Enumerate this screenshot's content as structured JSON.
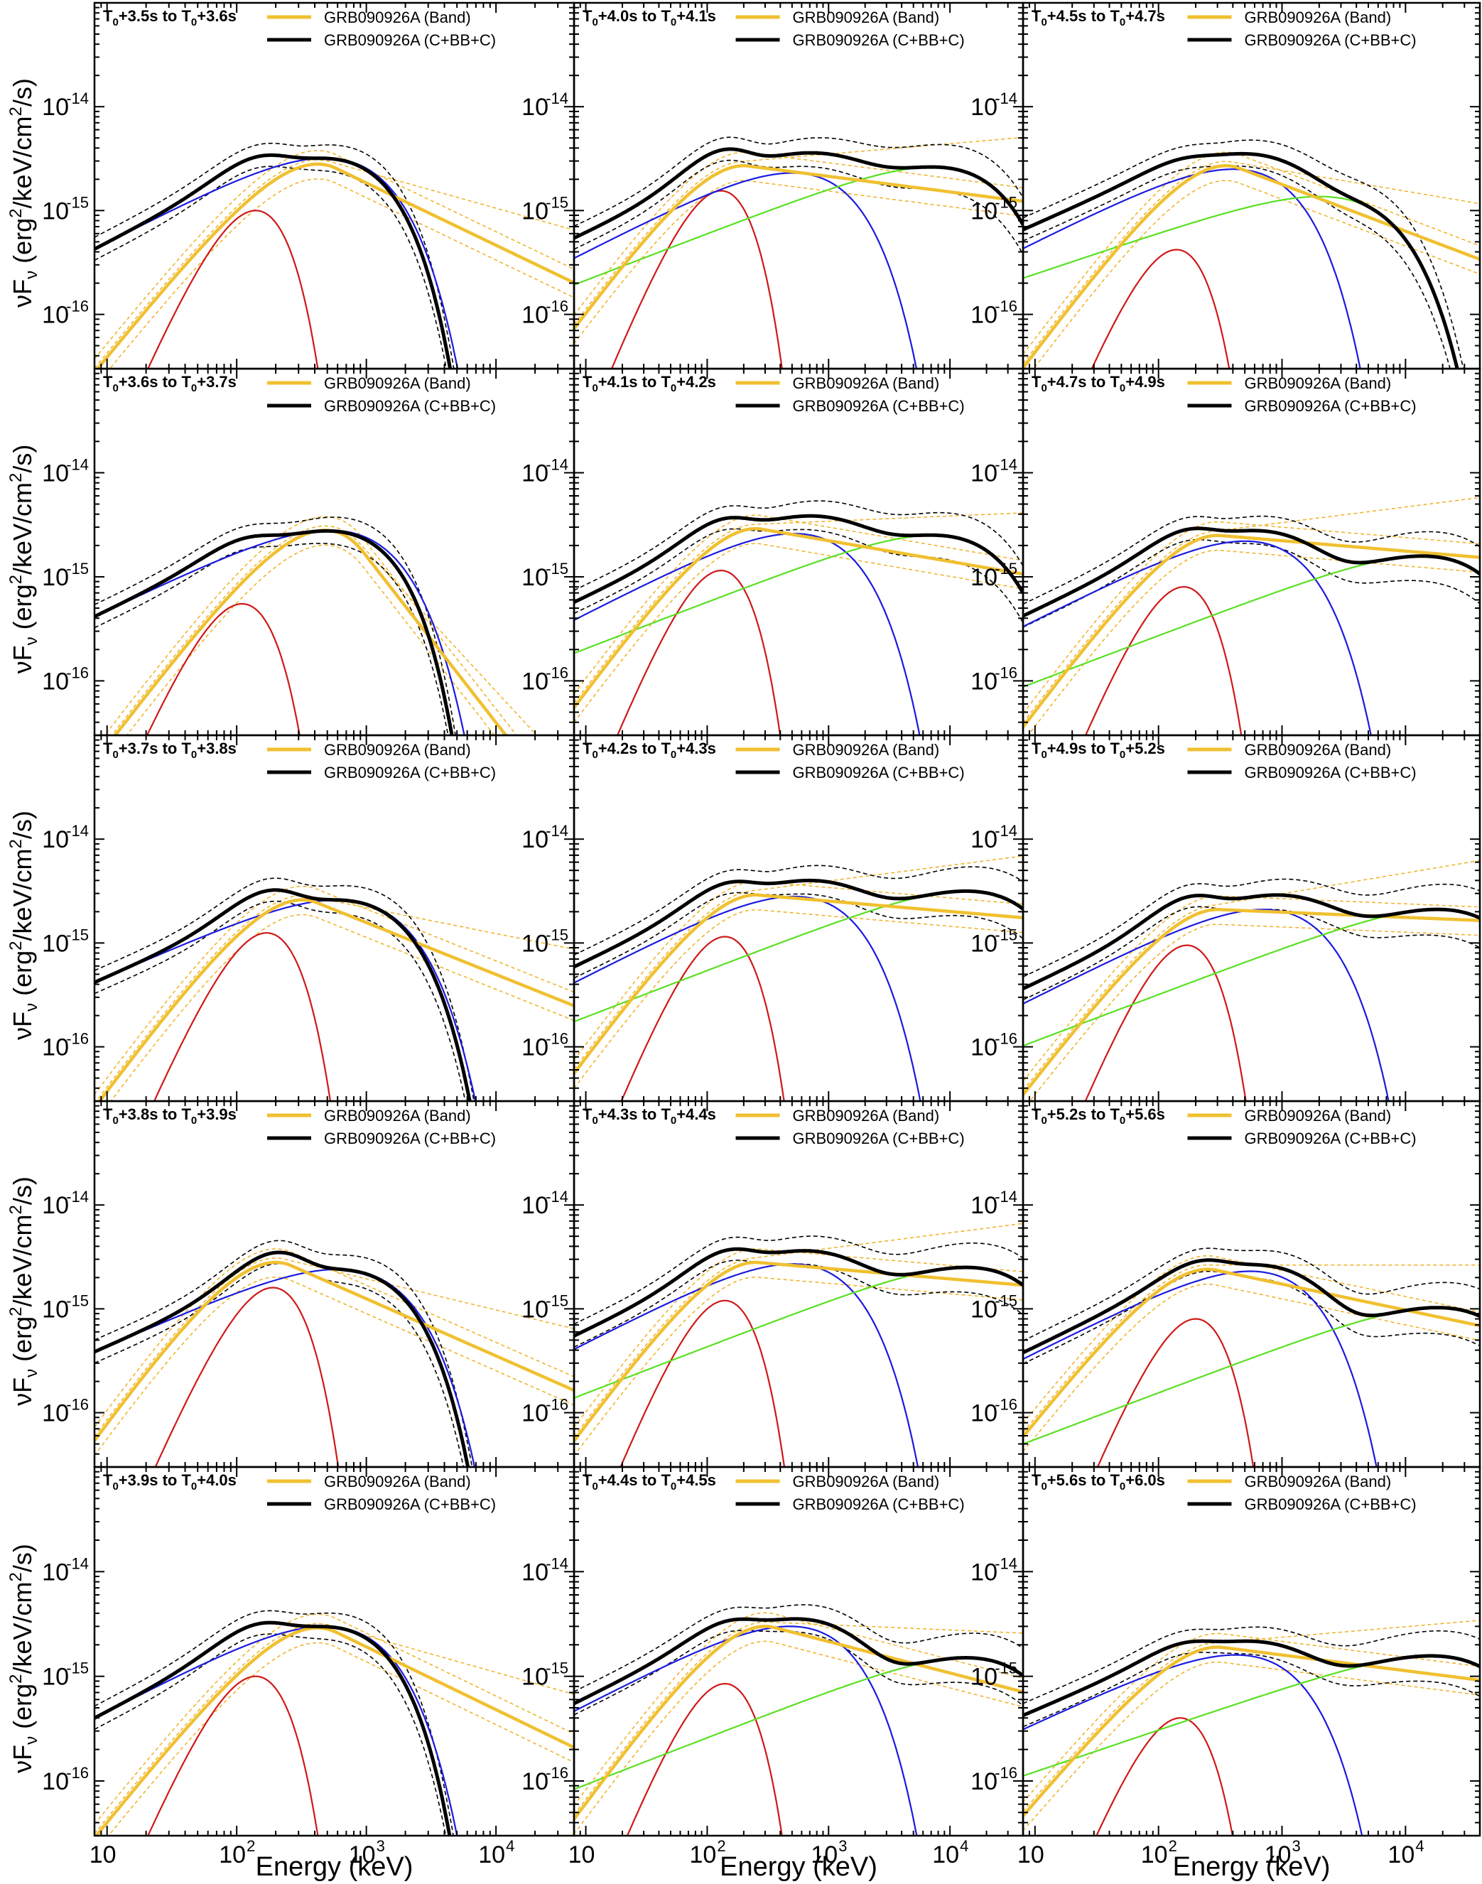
{
  "figure": {
    "ylabel_main": "νF",
    "ylabel_sub": "ν",
    "ylabel_unit": " (erg",
    "ylabel_sup": "2",
    "ylabel_tail": "/keV/cm",
    "ylabel_sup2": "2",
    "ylabel_end": "/s)",
    "xlabel": "Energy (keV)"
  },
  "legend": {
    "band_label": "GRB090926A (Band)",
    "cbbc_label": "GRB090926A (C+BB+C)",
    "band_color": "#f0c030",
    "cbbc_color": "#000000"
  },
  "component_colors": {
    "bb": "#d01818",
    "cutoff": "#1a1ae0",
    "powerlaw": "#58e020",
    "band": "#f0c030",
    "total": "#000000",
    "band_err": "#f0b020",
    "total_err": "#000000"
  },
  "chart_data": [
    {
      "type": "line",
      "panel": "col1-row1",
      "time_label": {
        "t0": "T",
        "sub0": "0",
        "a": "+3.5s to T",
        "sub1": "0",
        "b": "+3.6s"
      },
      "xscale": "log",
      "yscale": "log",
      "xlim": [
        8,
        40000
      ],
      "ylim": [
        3e-17,
        1e-13
      ],
      "band": {
        "A": 2.8e-15,
        "Ep": 420,
        "alpha": -0.45,
        "beta": -2.6
      },
      "bb": {
        "peak": 1e-15,
        "Ep": 140
      },
      "cutoff": {
        "A": 3.2e-15,
        "Ep": 480,
        "index": 0.65
      },
      "powerlaw": null,
      "total_cutoff": 3000
    },
    {
      "type": "line",
      "panel": "col1-row2",
      "time_label": {
        "t0": "T",
        "sub0": "0",
        "a": "+3.6s to T",
        "sub1": "0",
        "b": "+3.7s"
      },
      "xscale": "log",
      "yscale": "log",
      "xlim": [
        8,
        40000
      ],
      "ylim": [
        3e-17,
        1e-13
      ],
      "band": {
        "A": 2.8e-15,
        "Ep": 480,
        "alpha": -0.35,
        "beta": -3.6
      },
      "bb": {
        "peak": 5.5e-16,
        "Ep": 110
      },
      "cutoff": {
        "A": 2.8e-15,
        "Ep": 520,
        "index": 0.6
      },
      "powerlaw": null,
      "total_cutoff": 2500
    },
    {
      "type": "line",
      "panel": "col1-row3",
      "time_label": {
        "t0": "T",
        "sub0": "0",
        "a": "+3.7s to T",
        "sub1": "0",
        "b": "+3.8s"
      },
      "xscale": "log",
      "yscale": "log",
      "xlim": [
        8,
        40000
      ],
      "ylim": [
        3e-17,
        1e-13
      ],
      "band": {
        "A": 2.6e-15,
        "Ep": 320,
        "alpha": -0.3,
        "beta": -2.5
      },
      "bb": {
        "peak": 1.25e-15,
        "Ep": 170
      },
      "cutoff": {
        "A": 2.6e-15,
        "Ep": 600,
        "index": 0.55
      },
      "powerlaw": null,
      "total_cutoff": 5000
    },
    {
      "type": "line",
      "panel": "col1-row4",
      "time_label": {
        "t0": "T",
        "sub0": "0",
        "a": "+3.8s to T",
        "sub1": "0",
        "b": "+3.9s"
      },
      "xscale": "log",
      "yscale": "log",
      "xlim": [
        8,
        40000
      ],
      "ylim": [
        3e-17,
        1e-13
      ],
      "band": {
        "A": 2.8e-15,
        "Ep": 200,
        "alpha": -0.25,
        "beta": -2.55
      },
      "bb": {
        "peak": 1.6e-15,
        "Ep": 190
      },
      "cutoff": {
        "A": 2.4e-15,
        "Ep": 600,
        "index": 0.55
      },
      "powerlaw": null,
      "total_cutoff": 4500
    },
    {
      "type": "line",
      "panel": "col1-row5",
      "time_label": {
        "t0": "T",
        "sub0": "0",
        "a": "+3.9s to T",
        "sub1": "0",
        "b": "+4.0s"
      },
      "xscale": "log",
      "yscale": "log",
      "xlim": [
        8,
        40000
      ],
      "ylim": [
        3e-17,
        1e-13
      ],
      "band": {
        "A": 2.9e-15,
        "Ep": 420,
        "alpha": -0.45,
        "beta": -2.6
      },
      "bb": {
        "peak": 1e-15,
        "Ep": 140
      },
      "cutoff": {
        "A": 3e-15,
        "Ep": 480,
        "index": 0.65
      },
      "powerlaw": null,
      "total_cutoff": 3000
    },
    {
      "type": "line",
      "panel": "col2-row1",
      "time_label": {
        "t0": "T",
        "sub0": "0",
        "a": "+4.0s to T",
        "sub1": "0",
        "b": "+4.1s"
      },
      "xscale": "log",
      "yscale": "log",
      "xlim": [
        8,
        40000
      ],
      "ylim": [
        3e-17,
        1e-13
      ],
      "band": {
        "A": 2.7e-15,
        "Ep": 200,
        "alpha": -0.4,
        "beta": -2.15
      },
      "bb": {
        "peak": 1.55e-15,
        "Ep": 130
      },
      "cutoff": {
        "A": 2.3e-15,
        "Ep": 500,
        "index": 0.6
      },
      "powerlaw": {
        "A": 2.3e-15,
        "E0": 3000,
        "index": 0.45,
        "Ec": 16000
      },
      "total_cutoff": null
    },
    {
      "type": "line",
      "panel": "col2-row2",
      "time_label": {
        "t0": "T",
        "sub0": "0",
        "a": "+4.1s to T",
        "sub1": "0",
        "b": "+4.2s"
      },
      "xscale": "log",
      "yscale": "log",
      "xlim": [
        8,
        40000
      ],
      "ylim": [
        3e-17,
        1e-13
      ],
      "band": {
        "A": 2.9e-15,
        "Ep": 250,
        "alpha": -0.4,
        "beta": -2.2
      },
      "bb": {
        "peak": 1.15e-15,
        "Ep": 130
      },
      "cutoff": {
        "A": 2.6e-15,
        "Ep": 520,
        "index": 0.6
      },
      "powerlaw": {
        "A": 2.2e-15,
        "E0": 3000,
        "index": 0.45,
        "Ec": 16000
      },
      "total_cutoff": null
    },
    {
      "type": "line",
      "panel": "col2-row3",
      "time_label": {
        "t0": "T",
        "sub0": "0",
        "a": "+4.2s to T",
        "sub1": "0",
        "b": "+4.3s"
      },
      "xscale": "log",
      "yscale": "log",
      "xlim": [
        8,
        40000
      ],
      "ylim": [
        3e-17,
        1e-13
      ],
      "band": {
        "A": 2.9e-15,
        "Ep": 250,
        "alpha": -0.4,
        "beta": -2.1
      },
      "bb": {
        "peak": 1.15e-15,
        "Ep": 140
      },
      "cutoff": {
        "A": 2.8e-15,
        "Ep": 520,
        "index": 0.6
      },
      "powerlaw": {
        "A": 2.4e-15,
        "E0": 3500,
        "index": 0.45,
        "Ec": 30000
      },
      "total_cutoff": null
    },
    {
      "type": "line",
      "panel": "col2-row4",
      "time_label": {
        "t0": "T",
        "sub0": "0",
        "a": "+4.3s to T",
        "sub1": "0",
        "b": "+4.4s"
      },
      "xscale": "log",
      "yscale": "log",
      "xlim": [
        8,
        40000
      ],
      "ylim": [
        3e-17,
        1e-13
      ],
      "band": {
        "A": 2.8e-15,
        "Ep": 250,
        "alpha": -0.4,
        "beta": -2.1
      },
      "bb": {
        "peak": 1.2e-15,
        "Ep": 140
      },
      "cutoff": {
        "A": 2.7e-15,
        "Ep": 500,
        "index": 0.6
      },
      "powerlaw": {
        "A": 2.5e-15,
        "E0": 15000,
        "index": 0.45,
        "Ec": 30000
      },
      "total_cutoff": null
    },
    {
      "type": "line",
      "panel": "col2-row5",
      "time_label": {
        "t0": "T",
        "sub0": "0",
        "a": "+4.4s to T",
        "sub1": "0",
        "b": "+4.5s"
      },
      "xscale": "log",
      "yscale": "log",
      "xlim": [
        8,
        40000
      ],
      "ylim": [
        3e-17,
        1e-13
      ],
      "band": {
        "A": 3e-15,
        "Ep": 300,
        "alpha": -0.4,
        "beta": -2.3
      },
      "bb": {
        "peak": 8.5e-16,
        "Ep": 140
      },
      "cutoff": {
        "A": 3e-15,
        "Ep": 480,
        "index": 0.6
      },
      "powerlaw": {
        "A": 1.5e-15,
        "E0": 15000,
        "index": 0.45,
        "Ec": 30000
      },
      "total_cutoff": null
    },
    {
      "type": "line",
      "panel": "col3-row1",
      "time_label": {
        "t0": "T",
        "sub0": "0",
        "a": "+4.5s to T",
        "sub1": "0",
        "b": "+4.7s"
      },
      "xscale": "log",
      "yscale": "log",
      "xlim": [
        8,
        40000
      ],
      "ylim": [
        3e-17,
        1e-13
      ],
      "band": {
        "A": 2.7e-15,
        "Ep": 350,
        "alpha": -0.4,
        "beta": -2.45
      },
      "bb": {
        "peak": 4.2e-16,
        "Ep": 140
      },
      "cutoff": {
        "A": 2.5e-15,
        "Ep": 400,
        "index": 0.6
      },
      "powerlaw": {
        "A": 1.35e-15,
        "E0": 2500,
        "index": 0.4,
        "Ec": 5000
      },
      "total_cutoff": null
    },
    {
      "type": "line",
      "panel": "col3-row2",
      "time_label": {
        "t0": "T",
        "sub0": "0",
        "a": "+4.7s to T",
        "sub1": "0",
        "b": "+4.9s"
      },
      "xscale": "log",
      "yscale": "log",
      "xlim": [
        8,
        40000
      ],
      "ylim": [
        3e-17,
        1e-13
      ],
      "band": {
        "A": 2.5e-15,
        "Ep": 300,
        "alpha": -0.4,
        "beta": -2.1
      },
      "bb": {
        "peak": 8e-16,
        "Ep": 160
      },
      "cutoff": {
        "A": 2.2e-15,
        "Ep": 500,
        "index": 0.6
      },
      "powerlaw": {
        "A": 1.55e-15,
        "E0": 18000,
        "index": 0.45,
        "Ec": 30000
      },
      "total_cutoff": null
    },
    {
      "type": "line",
      "panel": "col3-row3",
      "time_label": {
        "t0": "T",
        "sub0": "0",
        "a": "+4.9s to T",
        "sub1": "0",
        "b": "+5.2s"
      },
      "xscale": "log",
      "yscale": "log",
      "xlim": [
        8,
        40000
      ],
      "ylim": [
        3e-17,
        1e-13
      ],
      "band": {
        "A": 2.1e-15,
        "Ep": 300,
        "alpha": -0.45,
        "beta": -2.05
      },
      "bb": {
        "peak": 9.5e-16,
        "Ep": 170
      },
      "cutoff": {
        "A": 2.1e-15,
        "Ep": 700,
        "index": 0.6
      },
      "powerlaw": {
        "A": 2.1e-15,
        "E0": 20000,
        "index": 0.45,
        "Ec": 40000
      },
      "total_cutoff": null
    },
    {
      "type": "line",
      "panel": "col3-row4",
      "time_label": {
        "t0": "T",
        "sub0": "0",
        "a": "+5.2s to T",
        "sub1": "0",
        "b": "+5.6s"
      },
      "xscale": "log",
      "yscale": "log",
      "xlim": [
        8,
        40000
      ],
      "ylim": [
        3e-17,
        1e-13
      ],
      "band": {
        "A": 2.4e-15,
        "Ep": 250,
        "alpha": -0.5,
        "beta": -2.25
      },
      "bb": {
        "peak": 8e-16,
        "Ep": 200
      },
      "cutoff": {
        "A": 2.3e-15,
        "Ep": 550,
        "index": 0.6
      },
      "powerlaw": {
        "A": 1e-15,
        "E0": 25000,
        "index": 0.45,
        "Ec": 40000
      },
      "total_cutoff": null
    },
    {
      "type": "line",
      "panel": "col3-row5",
      "time_label": {
        "t0": "T",
        "sub0": "0",
        "a": "+5.6s to T",
        "sub1": "0",
        "b": "+6.0s"
      },
      "xscale": "log",
      "yscale": "log",
      "xlim": [
        8,
        40000
      ],
      "ylim": [
        3e-17,
        1e-13
      ],
      "band": {
        "A": 1.9e-15,
        "Ep": 300,
        "alpha": -0.6,
        "beta": -2.15
      },
      "bb": {
        "peak": 4e-16,
        "Ep": 150
      },
      "cutoff": {
        "A": 1.6e-15,
        "Ep": 420,
        "index": 0.55
      },
      "powerlaw": {
        "A": 1.55e-15,
        "E0": 20000,
        "index": 0.4,
        "Ec": 40000
      },
      "total_cutoff": null
    }
  ]
}
